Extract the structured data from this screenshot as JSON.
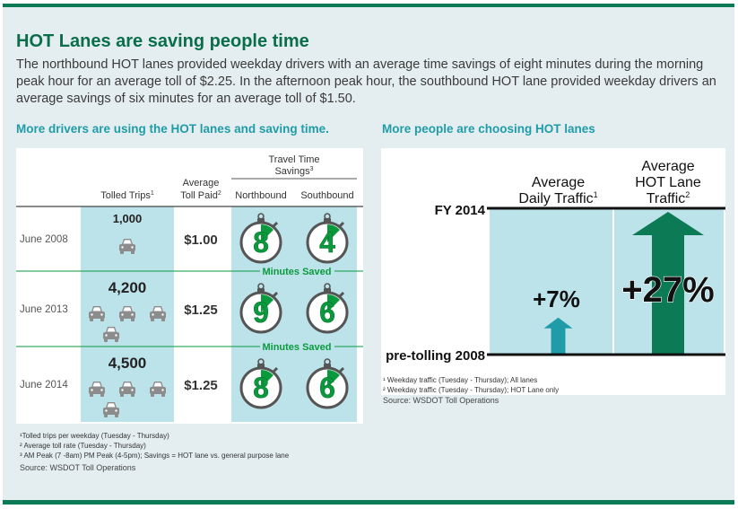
{
  "headline": "HOT Lanes are saving people time",
  "intro": "The northbound HOT lanes provided weekday drivers with an average time savings of eight minutes during the morning peak hour for an average toll of $2.25. In the afternoon peak hour, the southbound HOT lane provided weekday drivers an average savings of six minutes for an average toll of $1.50.",
  "colors": {
    "green": "#0b7a55",
    "teal": "#1f9ca8",
    "light_teal": "#bde3ea",
    "brand_green": "#0b6e4a",
    "minutes_green": "#0a9a3e"
  },
  "chart_data": [
    {
      "type": "table",
      "title": "More drivers are using the HOT lanes and saving time.",
      "columns": {
        "tolled_trips": "Tolled Trips",
        "tolled_trips_sup": "1",
        "toll_paid_line1": "Average",
        "toll_paid_line2": "Toll Paid",
        "toll_paid_sup": "2",
        "savings_line1": "Travel Time",
        "savings_line2": "Savings",
        "savings_sup": "3",
        "northbound": "Northbound",
        "southbound": "Southbound"
      },
      "minutes_saved_label": "Minutes Saved",
      "rows": [
        {
          "period": "June 2008",
          "tolled_trips": "1,000",
          "car_icons": 1,
          "toll_paid": "$1.00",
          "northbound": "8",
          "southbound": "4"
        },
        {
          "period": "June 2013",
          "tolled_trips": "4,200",
          "car_icons": 4.2,
          "toll_paid": "$1.25",
          "northbound": "9",
          "southbound": "6"
        },
        {
          "period": "June 2014",
          "tolled_trips": "4,500",
          "car_icons": 4.5,
          "toll_paid": "$1.25",
          "northbound": "8",
          "southbound": "6"
        }
      ],
      "footnotes": [
        "¹Tolled trips per weekday (Tuesday - Thursday)",
        "² Average toll rate (Tuesday - Thursday)",
        "³ AM Peak (7 -8am) PM Peak (4-5pm); Savings = HOT lane vs. general purpose lane"
      ],
      "source": "Source: WSDOT Toll Operations"
    },
    {
      "type": "bar",
      "title": "More people are choosing HOT lanes",
      "categories": [
        {
          "line1": "Average",
          "line2": "Daily Traffic",
          "sup": "1"
        },
        {
          "line1": "Average",
          "line2": "HOT Lane",
          "line3": "Traffic",
          "sup": "2"
        }
      ],
      "values": [
        7,
        27
      ],
      "value_labels": [
        "+7%",
        "+27%"
      ],
      "ymax": 27,
      "top_line_label": "FY 2014",
      "baseline_label": "pre-tolling 2008",
      "footnotes": [
        "¹ Weekday traffic (Tuesday - Thursday); All lanes",
        "² Weekday traffic (Tuesday - Thursday); HOT Lane only"
      ],
      "source": "Source: WSDOT Toll Operations"
    }
  ]
}
